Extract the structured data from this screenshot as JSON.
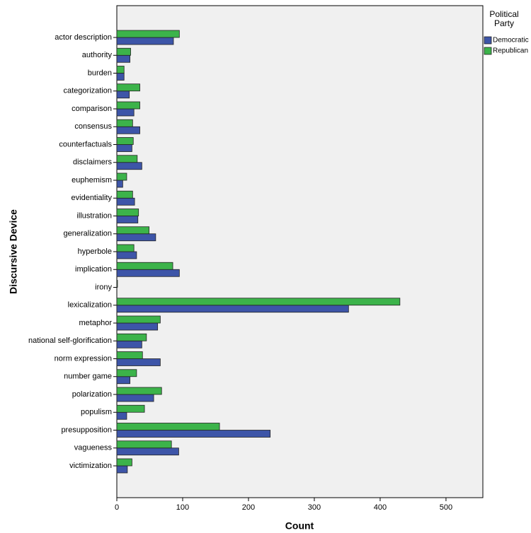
{
  "chart_data": {
    "type": "bar",
    "orientation": "horizontal",
    "x_label": "Count",
    "y_label": "Discursive Device",
    "legend_title": "Political Party",
    "categories": [
      "actor description",
      "authority",
      "burden",
      "categorization",
      "comparison",
      "consensus",
      "counterfactuals",
      "disclaimers",
      "euphemism",
      "evidentiality",
      "illustration",
      "generalization",
      "hyperbole",
      "implication",
      "irony",
      "lexicalization",
      "metaphor",
      "national self-glorification",
      "norm expression",
      "number game",
      "polarization",
      "populism",
      "presupposition",
      "vagueness",
      "victimization"
    ],
    "series": [
      {
        "name": "Democratic",
        "color": "#3d55a8",
        "values": [
          86,
          20,
          11,
          19,
          26,
          35,
          23,
          38,
          9,
          27,
          32,
          59,
          30,
          95,
          0,
          352,
          62,
          38,
          66,
          20,
          56,
          15,
          233,
          94,
          16
        ]
      },
      {
        "name": "Republican",
        "color": "#3cb34a",
        "values": [
          95,
          21,
          11,
          35,
          35,
          24,
          25,
          31,
          15,
          24,
          33,
          49,
          26,
          85,
          1,
          430,
          66,
          45,
          39,
          30,
          68,
          42,
          156,
          83,
          23
        ]
      }
    ],
    "xlim": [
      0,
      556
    ],
    "xticks": [
      0,
      100,
      200,
      300,
      400,
      500
    ]
  }
}
